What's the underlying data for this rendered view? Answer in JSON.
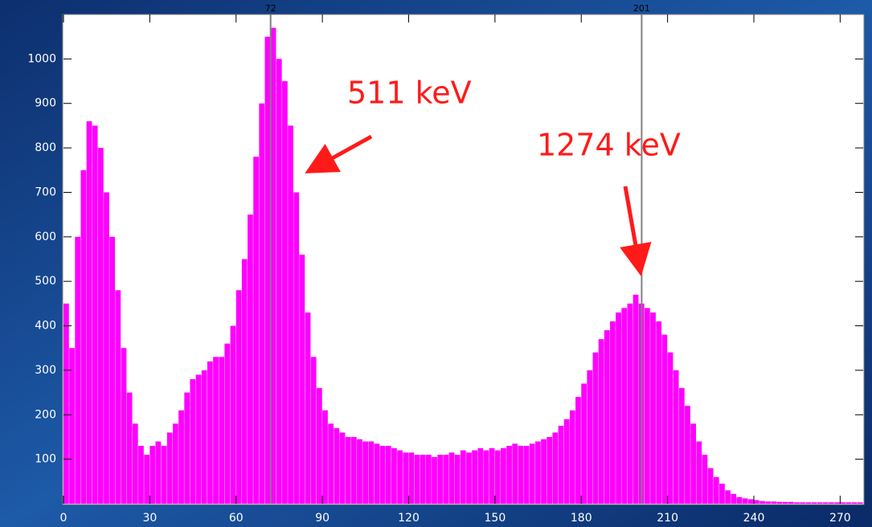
{
  "chart_data": {
    "type": "histogram",
    "bins": [
      0,
      2,
      4,
      6,
      8,
      10,
      12,
      14,
      16,
      18,
      20,
      22,
      24,
      26,
      28,
      30,
      32,
      34,
      36,
      38,
      40,
      42,
      44,
      46,
      48,
      50,
      52,
      54,
      56,
      58,
      60,
      62,
      64,
      66,
      68,
      70,
      72,
      74,
      76,
      78,
      80,
      82,
      84,
      86,
      88,
      90,
      92,
      94,
      96,
      98,
      100,
      102,
      104,
      106,
      108,
      110,
      112,
      114,
      116,
      118,
      120,
      122,
      124,
      126,
      128,
      130,
      132,
      134,
      136,
      138,
      140,
      142,
      144,
      146,
      148,
      150,
      152,
      154,
      156,
      158,
      160,
      162,
      164,
      166,
      168,
      170,
      172,
      174,
      176,
      178,
      180,
      182,
      184,
      186,
      188,
      190,
      192,
      194,
      196,
      198,
      200,
      202,
      204,
      206,
      208,
      210,
      212,
      214,
      216,
      218,
      220,
      222,
      224,
      226,
      228,
      230,
      232,
      234,
      236,
      238,
      240,
      242,
      244,
      246,
      248,
      250,
      252,
      254,
      256,
      258,
      260,
      262,
      264,
      266,
      268,
      270,
      272,
      274,
      276,
      278
    ],
    "values": [
      450,
      350,
      600,
      750,
      860,
      850,
      800,
      700,
      600,
      480,
      350,
      250,
      180,
      130,
      110,
      130,
      140,
      130,
      160,
      180,
      210,
      250,
      280,
      290,
      300,
      320,
      330,
      330,
      360,
      400,
      480,
      550,
      650,
      780,
      900,
      1050,
      1070,
      1000,
      950,
      850,
      700,
      560,
      430,
      330,
      260,
      210,
      180,
      170,
      160,
      150,
      150,
      145,
      140,
      140,
      135,
      130,
      130,
      125,
      120,
      115,
      115,
      110,
      110,
      110,
      105,
      110,
      110,
      115,
      110,
      120,
      115,
      120,
      125,
      120,
      125,
      120,
      125,
      130,
      135,
      130,
      130,
      135,
      140,
      145,
      150,
      160,
      175,
      190,
      210,
      240,
      270,
      300,
      340,
      370,
      390,
      410,
      430,
      440,
      450,
      470,
      450,
      440,
      430,
      410,
      380,
      340,
      300,
      260,
      220,
      180,
      140,
      110,
      80,
      60,
      45,
      30,
      22,
      15,
      12,
      10,
      8,
      6,
      5,
      5,
      4,
      4,
      4,
      3,
      3,
      3,
      3,
      3,
      3,
      3,
      3,
      3,
      3,
      3,
      3
    ],
    "color": "#ff00ff",
    "xlim": [
      0,
      278
    ],
    "ylim": [
      0,
      1100
    ],
    "xticks": [
      0,
      30,
      60,
      90,
      120,
      150,
      180,
      210,
      240,
      270
    ],
    "yticks": [
      100,
      200,
      300,
      400,
      500,
      600,
      700,
      800,
      900,
      1000
    ],
    "markers": [
      72,
      201
    ],
    "annotations": [
      "511 keV",
      "1274 keV"
    ]
  }
}
